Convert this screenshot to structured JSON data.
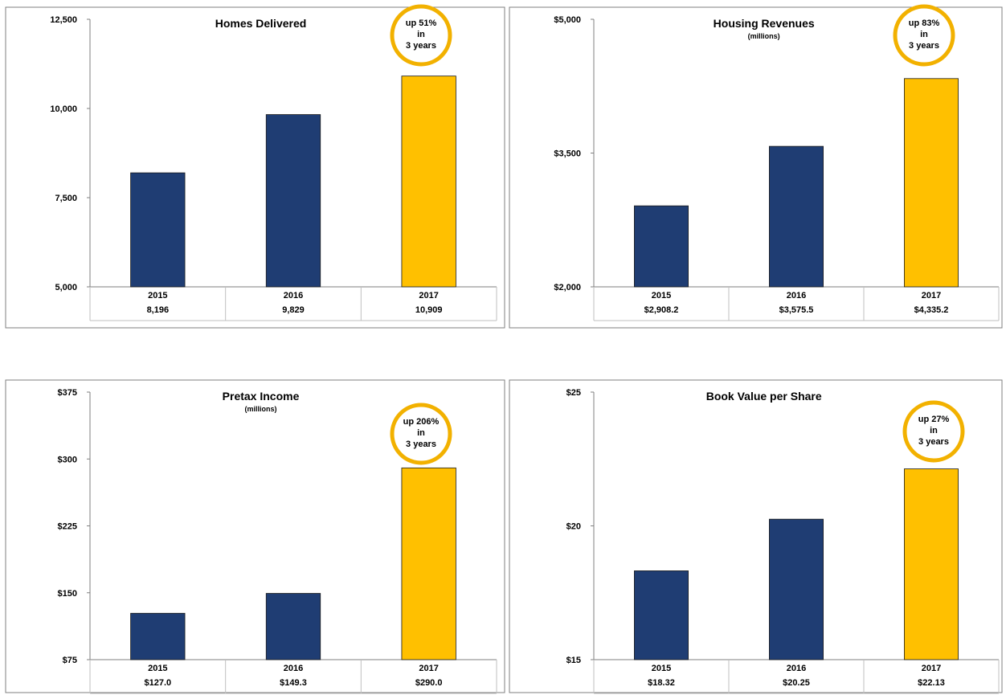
{
  "colors": {
    "regular_bar": "#1f3d73",
    "highlight_bar": "#ffc000",
    "callout_ring": "#f2b100",
    "frame": "#7f7f7f",
    "axis": "#7f7f7f"
  },
  "chart_data": [
    {
      "type": "bar",
      "title": "Homes Delivered",
      "subtitle": "",
      "categories": [
        "2015",
        "2016",
        "2017"
      ],
      "values": [
        8196,
        9829,
        10909
      ],
      "value_labels": [
        "8,196",
        "9,829",
        "10,909"
      ],
      "yticks": [
        "5,000",
        "7,500",
        "10,000",
        "12,500"
      ],
      "ylim": [
        5000,
        12500
      ],
      "highlight_index": 2,
      "callout": [
        "up 51%",
        "in",
        "3 years"
      ]
    },
    {
      "type": "bar",
      "title": "Housing Revenues",
      "subtitle": "(millions)",
      "categories": [
        "2015",
        "2016",
        "2017"
      ],
      "values": [
        2908.2,
        3575.5,
        4335.2
      ],
      "value_labels": [
        "$2,908.2",
        "$3,575.5",
        "$4,335.2"
      ],
      "yticks": [
        "$2,000",
        "$3,500",
        "$5,000"
      ],
      "ylim": [
        2000,
        5000
      ],
      "highlight_index": 2,
      "callout": [
        "up 83%",
        "in",
        "3 years"
      ]
    },
    {
      "type": "bar",
      "title": "Pretax Income",
      "subtitle": "(millions)",
      "categories": [
        "2015",
        "2016",
        "2017"
      ],
      "values": [
        127.0,
        149.3,
        290.0
      ],
      "value_labels": [
        "$127.0",
        "$149.3",
        "$290.0"
      ],
      "yticks": [
        "$75",
        "$150",
        "$225",
        "$300",
        "$375"
      ],
      "ylim": [
        75,
        375
      ],
      "highlight_index": 2,
      "callout": [
        "up 206%",
        "in",
        "3 years"
      ]
    },
    {
      "type": "bar",
      "title": "Book Value per Share",
      "subtitle": "",
      "categories": [
        "2015",
        "2016",
        "2017"
      ],
      "values": [
        18.32,
        20.25,
        22.13
      ],
      "value_labels": [
        "$18.32",
        "$20.25",
        "$22.13"
      ],
      "yticks": [
        "$15",
        "$20",
        "$25"
      ],
      "ylim": [
        15,
        25
      ],
      "highlight_index": 2,
      "callout": [
        "up 27%",
        "in",
        "3 years"
      ]
    }
  ]
}
